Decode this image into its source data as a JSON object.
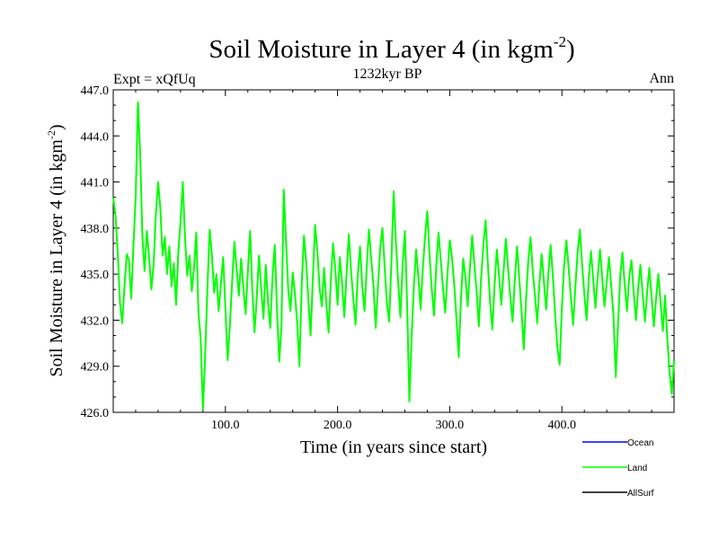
{
  "chart_data": {
    "type": "line",
    "title": "Soil Moisture in Layer 4 (in kgm",
    "title_superscript": "-2",
    "title_suffix": ")",
    "subtitle": "1232kyr BP",
    "left_label": "Expt = xQfUq",
    "right_label": "Ann",
    "xlabel": "Time (in years since start)",
    "ylabel": "Soil Moisture in Layer 4 (in kgm",
    "ylabel_superscript": "-2",
    "ylabel_suffix": ")",
    "xlim": [
      0,
      500
    ],
    "ylim": [
      426,
      447
    ],
    "x_ticks": [
      100,
      200,
      300,
      400
    ],
    "x_tick_labels": [
      "100.0",
      "200.0",
      "300.0",
      "400.0"
    ],
    "y_ticks": [
      426,
      429,
      432,
      435,
      438,
      441,
      444,
      447
    ],
    "y_tick_labels": [
      "426.0",
      "429.0",
      "432.0",
      "435.0",
      "438.0",
      "441.0",
      "444.0",
      "447.0"
    ],
    "series": [
      {
        "name": "Land",
        "color": "#00ff00",
        "x": [
          0,
          2,
          4,
          6,
          8,
          10,
          12,
          14,
          16,
          18,
          20,
          22,
          24,
          26,
          28,
          30,
          32,
          34,
          36,
          38,
          40,
          42,
          44,
          46,
          48,
          50,
          52,
          54,
          56,
          58,
          60,
          62,
          64,
          66,
          68,
          70,
          72,
          74,
          76,
          78,
          80,
          82,
          84,
          86,
          88,
          90,
          92,
          94,
          96,
          98,
          100,
          102,
          104,
          106,
          108,
          110,
          112,
          114,
          116,
          118,
          120,
          122,
          124,
          126,
          128,
          130,
          132,
          134,
          136,
          138,
          140,
          142,
          144,
          146,
          148,
          150,
          152,
          154,
          156,
          158,
          160,
          162,
          164,
          166,
          168,
          170,
          172,
          174,
          176,
          178,
          180,
          182,
          184,
          186,
          188,
          190,
          192,
          194,
          196,
          198,
          200,
          202,
          204,
          206,
          208,
          210,
          212,
          214,
          216,
          218,
          220,
          222,
          224,
          226,
          228,
          230,
          232,
          234,
          236,
          238,
          240,
          242,
          244,
          246,
          248,
          250,
          252,
          254,
          256,
          258,
          260,
          262,
          264,
          266,
          268,
          270,
          272,
          274,
          276,
          278,
          280,
          282,
          284,
          286,
          288,
          290,
          292,
          294,
          296,
          298,
          300,
          302,
          304,
          306,
          308,
          310,
          312,
          314,
          316,
          318,
          320,
          322,
          324,
          326,
          328,
          330,
          332,
          334,
          336,
          338,
          340,
          342,
          344,
          346,
          348,
          350,
          352,
          354,
          356,
          358,
          360,
          362,
          364,
          366,
          368,
          370,
          372,
          374,
          376,
          378,
          380,
          382,
          384,
          386,
          388,
          390,
          392,
          394,
          396,
          398,
          400,
          402,
          404,
          406,
          408,
          410,
          412,
          414,
          416,
          418,
          420,
          422,
          424,
          426,
          428,
          430,
          432,
          434,
          436,
          438,
          440,
          442,
          444,
          446,
          448,
          450,
          452,
          454,
          456,
          458,
          460,
          462,
          464,
          466,
          468,
          470,
          472,
          474,
          476,
          478,
          480,
          482,
          484,
          486,
          488,
          490,
          492,
          494,
          496,
          498,
          500
        ],
        "values": [
          440.0,
          438.8,
          436.4,
          433.1,
          431.8,
          434.2,
          436.3,
          435.9,
          433.4,
          436.9,
          440.1,
          446.2,
          442.8,
          437.5,
          435.2,
          437.8,
          436.1,
          434.0,
          435.6,
          438.9,
          441.0,
          439.3,
          436.2,
          437.4,
          435.0,
          436.8,
          434.2,
          435.7,
          433.0,
          436.4,
          438.4,
          441.0,
          437.3,
          434.9,
          436.2,
          433.9,
          435.4,
          437.7,
          432.5,
          430.8,
          426.2,
          429.7,
          434.1,
          437.9,
          436.2,
          433.8,
          435.0,
          432.6,
          434.4,
          436.1,
          432.8,
          429.4,
          431.7,
          434.5,
          437.1,
          435.3,
          433.6,
          436.0,
          434.1,
          432.4,
          435.2,
          437.8,
          433.9,
          431.2,
          433.5,
          436.2,
          434.0,
          432.1,
          435.6,
          433.2,
          431.5,
          434.8,
          436.9,
          432.7,
          429.3,
          431.6,
          440.5,
          437.2,
          434.0,
          432.6,
          435.1,
          433.7,
          431.8,
          429.0,
          434.3,
          437.5,
          435.8,
          433.2,
          431.0,
          434.7,
          438.2,
          436.5,
          434.1,
          432.9,
          435.4,
          433.1,
          431.2,
          434.6,
          437.0,
          435.3,
          433.0,
          436.1,
          434.4,
          432.2,
          435.0,
          437.6,
          435.2,
          433.4,
          431.7,
          434.9,
          436.8,
          434.2,
          432.6,
          435.4,
          437.9,
          436.0,
          434.3,
          431.5,
          434.1,
          436.7,
          438.0,
          435.5,
          433.1,
          431.9,
          435.8,
          440.4,
          437.1,
          434.5,
          432.2,
          435.6,
          437.8,
          433.0,
          426.7,
          430.9,
          434.2,
          436.6,
          434.8,
          432.7,
          435.3,
          437.4,
          439.1,
          436.3,
          434.0,
          432.3,
          435.5,
          437.7,
          435.9,
          434.1,
          432.5,
          435.0,
          437.2,
          436.1,
          434.3,
          432.1,
          429.6,
          433.4,
          436.0,
          434.8,
          432.9,
          435.4,
          437.5,
          435.6,
          433.8,
          431.6,
          434.7,
          436.9,
          438.5,
          435.7,
          433.2,
          431.4,
          434.3,
          436.6,
          434.9,
          433.0,
          435.2,
          437.3,
          435.4,
          433.5,
          431.9,
          434.6,
          436.8,
          434.7,
          432.6,
          430.1,
          433.3,
          435.9,
          437.4,
          435.2,
          433.6,
          431.8,
          434.4,
          436.3,
          434.5,
          432.7,
          435.1,
          436.9,
          434.8,
          432.4,
          430.2,
          429.1,
          432.8,
          435.6,
          437.2,
          435.4,
          433.5,
          431.7,
          434.2,
          436.4,
          437.9,
          435.6,
          433.7,
          432.0,
          434.8,
          436.5,
          434.6,
          432.8,
          434.9,
          436.6,
          434.7,
          432.9,
          434.5,
          436.1,
          434.2,
          432.3,
          428.3,
          431.6,
          434.9,
          436.4,
          434.3,
          432.6,
          434.8,
          435.9,
          433.8,
          432.0,
          434.1,
          435.6,
          433.7,
          431.9,
          433.8,
          435.4,
          433.5,
          431.6,
          433.4,
          435.0,
          433.2,
          431.3,
          433.6,
          430.8,
          428.6,
          427.2,
          429.4
        ]
      }
    ],
    "legend": [
      {
        "label": "Ocean",
        "color": "#0000ff"
      },
      {
        "label": "Land",
        "color": "#00ff00"
      },
      {
        "label": "AllSurf",
        "color": "#000000"
      }
    ],
    "legend_position": "bottom-right"
  }
}
